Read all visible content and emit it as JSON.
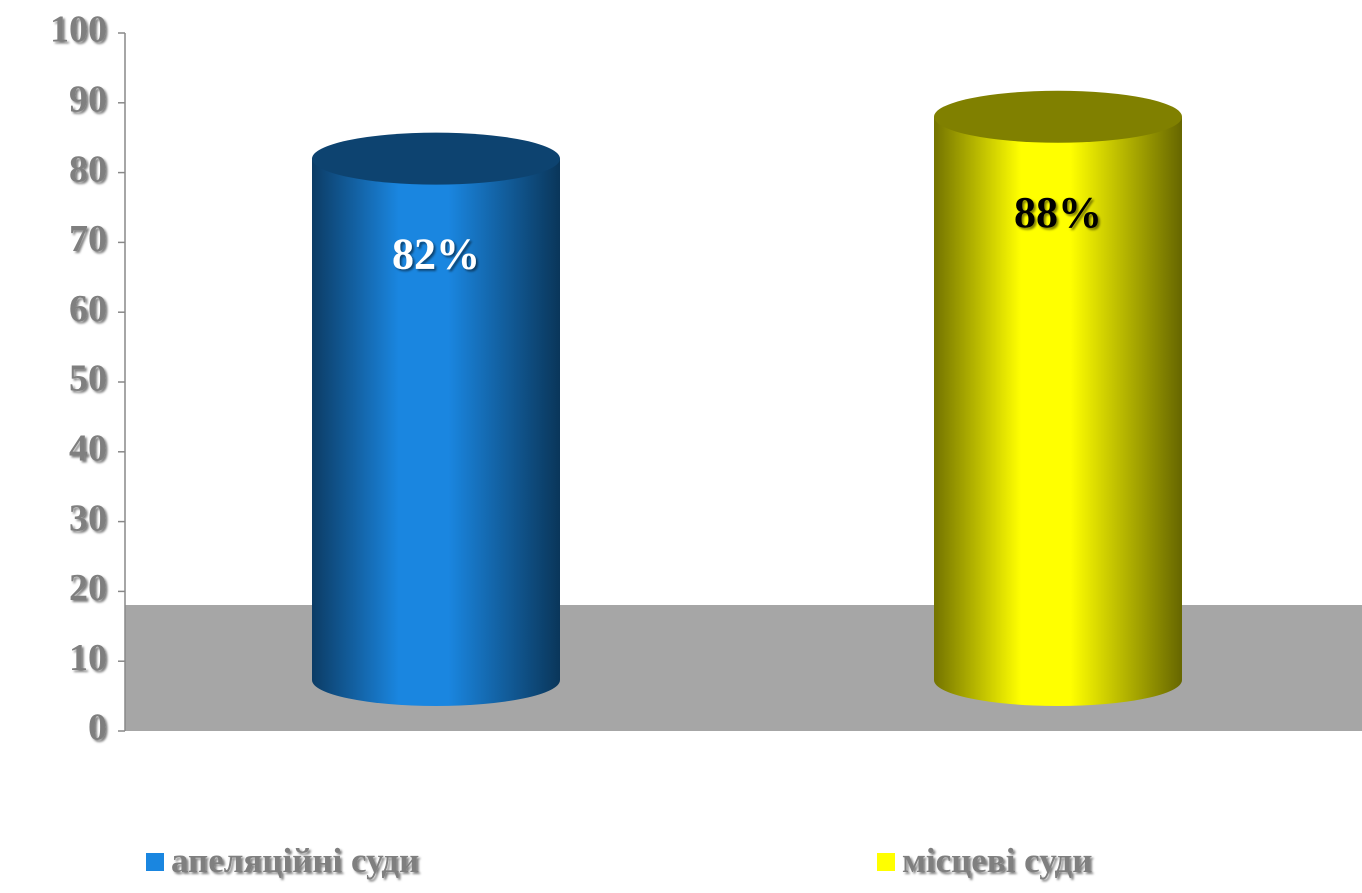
{
  "chart_data": {
    "type": "bar",
    "categories": [
      null
    ],
    "series": [
      {
        "name": "апеляційні суди",
        "color": "#1a86e0",
        "values": [
          82
        ],
        "value_labels": [
          "82%"
        ]
      },
      {
        "name": "місцеві суди",
        "color": "#ffff00",
        "values": [
          88
        ],
        "value_labels": [
          "88%"
        ]
      }
    ],
    "ylim": [
      0,
      100
    ],
    "yticks": [
      0,
      10,
      20,
      30,
      40,
      50,
      60,
      70,
      80,
      90,
      100
    ]
  }
}
